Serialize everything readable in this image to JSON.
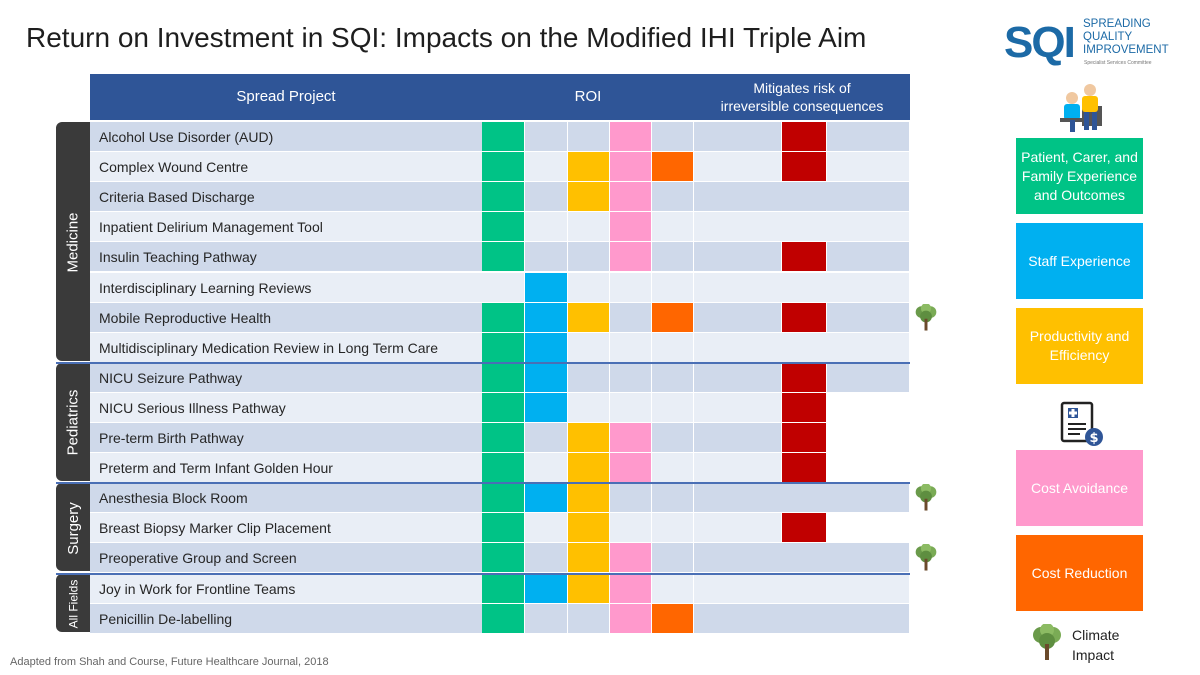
{
  "title": "Return on Investment in SQI: Impacts on the Modified IHI Triple Aim",
  "logo": {
    "mark": "SQI",
    "line1": "SPREADING",
    "line2": "QUALITY",
    "line3": "IMPROVEMENT",
    "sub": "Specialist Services Committee"
  },
  "headers": {
    "project": "Spread Project",
    "roi": "ROI",
    "mitigates_line1": "Mitigates risk of",
    "mitigates_line2": "irreversible consequences"
  },
  "colors": {
    "patient": "#00c386",
    "staff": "#00b0f0",
    "productivity": "#ffc000",
    "cost_avoidance": "#ff99cc",
    "cost_reduction": "#ff6600",
    "irreversible": "#c00000",
    "row_dark": "#cfd9ea",
    "row_light": "#e9eef6",
    "header": "#2f5597",
    "group": "#3a3a3a"
  },
  "groups": [
    {
      "label": "Medicine",
      "start": 0,
      "count": 8
    },
    {
      "label": "Pediatrics",
      "start": 8,
      "count": 4
    },
    {
      "label": "Surgery",
      "start": 12,
      "count": 3
    },
    {
      "label": "All Fields",
      "start": 15,
      "count": 2
    }
  ],
  "rows": [
    {
      "name": "Alcohol Use Disorder (AUD)",
      "patient": true,
      "staff": false,
      "productivity": false,
      "cost_avoidance": true,
      "cost_reduction": false,
      "irreversible": true,
      "climate": false
    },
    {
      "name": "Complex Wound Centre",
      "patient": true,
      "staff": false,
      "productivity": true,
      "cost_avoidance": true,
      "cost_reduction": true,
      "irreversible": true,
      "climate": false
    },
    {
      "name": "Criteria Based Discharge",
      "patient": true,
      "staff": false,
      "productivity": true,
      "cost_avoidance": true,
      "cost_reduction": false,
      "irreversible": false,
      "climate": false
    },
    {
      "name": "Inpatient Delirium Management Tool",
      "patient": true,
      "staff": false,
      "productivity": false,
      "cost_avoidance": true,
      "cost_reduction": false,
      "irreversible": false,
      "climate": false
    },
    {
      "name": "Insulin Teaching Pathway",
      "patient": true,
      "staff": false,
      "productivity": false,
      "cost_avoidance": true,
      "cost_reduction": false,
      "irreversible": true,
      "climate": false
    },
    {
      "name": "Interdisciplinary Learning Reviews",
      "patient": false,
      "staff": true,
      "productivity": false,
      "cost_avoidance": false,
      "cost_reduction": false,
      "irreversible": false,
      "climate": false
    },
    {
      "name": "Mobile Reproductive Health",
      "patient": true,
      "staff": true,
      "productivity": true,
      "cost_avoidance": false,
      "cost_reduction": true,
      "irreversible": true,
      "climate": true
    },
    {
      "name": "Multidisciplinary Medication Review in Long Term Care",
      "patient": true,
      "staff": true,
      "productivity": false,
      "cost_avoidance": false,
      "cost_reduction": false,
      "irreversible": false,
      "climate": false
    },
    {
      "name": "NICU Seizure Pathway",
      "patient": true,
      "staff": true,
      "productivity": false,
      "cost_avoidance": false,
      "cost_reduction": false,
      "irreversible": true,
      "climate": false
    },
    {
      "name": "NICU Serious Illness Pathway",
      "patient": true,
      "staff": true,
      "productivity": false,
      "cost_avoidance": false,
      "cost_reduction": false,
      "irreversible": true,
      "climate": false
    },
    {
      "name": "Pre-term Birth Pathway",
      "patient": true,
      "staff": false,
      "productivity": true,
      "cost_avoidance": true,
      "cost_reduction": false,
      "irreversible": true,
      "climate": false
    },
    {
      "name": "Preterm and Term Infant Golden Hour",
      "patient": true,
      "staff": false,
      "productivity": true,
      "cost_avoidance": true,
      "cost_reduction": false,
      "irreversible": true,
      "climate": false
    },
    {
      "name": "Anesthesia Block Room",
      "patient": true,
      "staff": true,
      "productivity": true,
      "cost_avoidance": false,
      "cost_reduction": false,
      "irreversible": false,
      "climate": true
    },
    {
      "name": "Breast Biopsy Marker Clip Placement",
      "patient": true,
      "staff": false,
      "productivity": true,
      "cost_avoidance": false,
      "cost_reduction": false,
      "irreversible": true,
      "climate": false
    },
    {
      "name": "Preoperative Group and Screen",
      "patient": true,
      "staff": false,
      "productivity": true,
      "cost_avoidance": true,
      "cost_reduction": false,
      "irreversible": false,
      "climate": true
    },
    {
      "name": "Joy in Work for Frontline Teams",
      "patient": true,
      "staff": true,
      "productivity": true,
      "cost_avoidance": true,
      "cost_reduction": false,
      "irreversible": false,
      "climate": false
    },
    {
      "name": "Penicillin De-labelling",
      "patient": true,
      "staff": false,
      "productivity": false,
      "cost_avoidance": true,
      "cost_reduction": true,
      "irreversible": false,
      "climate": false
    }
  ],
  "legend": {
    "patient": "Patient, Carer, and Family Experience and Outcomes",
    "staff": "Staff Experience",
    "productivity": "Productivity and Efficiency",
    "cost_avoidance": "Cost Avoidance",
    "cost_reduction": "Cost Reduction",
    "climate_line1": "Climate",
    "climate_line2": "Impact"
  },
  "footer": "Adapted from Shah and Course, Future Healthcare Journal, 2018"
}
